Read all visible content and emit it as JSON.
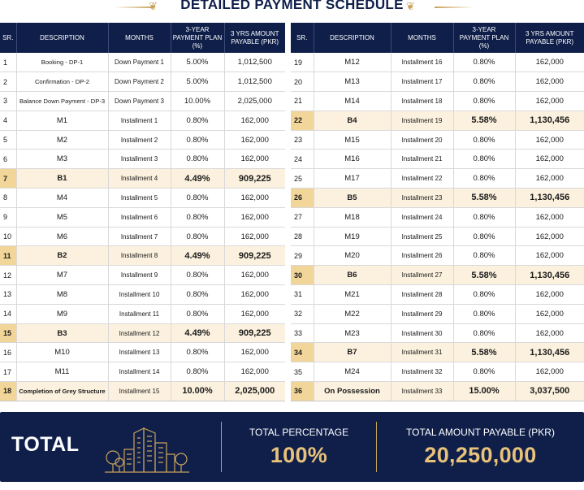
{
  "title": "DETAILED PAYMENT SCHEDULE",
  "headers": {
    "sr": "SR.",
    "description": "DESCRIPTION",
    "months": "MONTHS",
    "plan_line1": "3-YEAR",
    "plan_line2": "PAYMENT PLAN (%)",
    "amount_line1": "3 YRS AMOUNT",
    "amount_line2": "PAYABLE (PKR)"
  },
  "left_rows": [
    {
      "sr": "1",
      "desc": "Booking - DP-1",
      "months": "Down Payment 1",
      "pct": "5.00%",
      "amt": "1,012,500",
      "hl": false,
      "long": true
    },
    {
      "sr": "2",
      "desc": "Confirmation - DP-2",
      "months": "Down Payment 2",
      "pct": "5.00%",
      "amt": "1,012,500",
      "hl": false,
      "long": true
    },
    {
      "sr": "3",
      "desc": "Balance Down Payment - DP-3",
      "months": "Down Payment 3",
      "pct": "10.00%",
      "amt": "2,025,000",
      "hl": false,
      "long": true
    },
    {
      "sr": "4",
      "desc": "M1",
      "months": "Installment 1",
      "pct": "0.80%",
      "amt": "162,000",
      "hl": false
    },
    {
      "sr": "5",
      "desc": "M2",
      "months": "Installment 2",
      "pct": "0.80%",
      "amt": "162,000",
      "hl": false
    },
    {
      "sr": "6",
      "desc": "M3",
      "months": "Installment 3",
      "pct": "0.80%",
      "amt": "162,000",
      "hl": false
    },
    {
      "sr": "7",
      "desc": "B1",
      "months": "Installment 4",
      "pct": "4.49%",
      "amt": "909,225",
      "hl": true
    },
    {
      "sr": "8",
      "desc": "M4",
      "months": "Installment 5",
      "pct": "0.80%",
      "amt": "162,000",
      "hl": false
    },
    {
      "sr": "9",
      "desc": "M5",
      "months": "Installment 6",
      "pct": "0.80%",
      "amt": "162,000",
      "hl": false
    },
    {
      "sr": "10",
      "desc": "M6",
      "months": "Installment 7",
      "pct": "0.80%",
      "amt": "162,000",
      "hl": false
    },
    {
      "sr": "11",
      "desc": "B2",
      "months": "Installment 8",
      "pct": "4.49%",
      "amt": "909,225",
      "hl": true
    },
    {
      "sr": "12",
      "desc": "M7",
      "months": "Installment 9",
      "pct": "0.80%",
      "amt": "162,000",
      "hl": false
    },
    {
      "sr": "13",
      "desc": "M8",
      "months": "Installment 10",
      "pct": "0.80%",
      "amt": "162,000",
      "hl": false
    },
    {
      "sr": "14",
      "desc": "M9",
      "months": "Installment 11",
      "pct": "0.80%",
      "amt": "162,000",
      "hl": false
    },
    {
      "sr": "15",
      "desc": "B3",
      "months": "Installment 12",
      "pct": "4.49%",
      "amt": "909,225",
      "hl": true
    },
    {
      "sr": "16",
      "desc": "M10",
      "months": "Installment 13",
      "pct": "0.80%",
      "amt": "162,000",
      "hl": false
    },
    {
      "sr": "17",
      "desc": "M11",
      "months": "Installment 14",
      "pct": "0.80%",
      "amt": "162,000",
      "hl": false
    },
    {
      "sr": "18",
      "desc": "Completion of Grey Structure",
      "months": "Installment 15",
      "pct": "10.00%",
      "amt": "2,025,000",
      "hl": true,
      "long": true
    }
  ],
  "right_rows": [
    {
      "sr": "19",
      "desc": "M12",
      "months": "Installment 16",
      "pct": "0.80%",
      "amt": "162,000",
      "hl": false
    },
    {
      "sr": "20",
      "desc": "M13",
      "months": "Installment 17",
      "pct": "0.80%",
      "amt": "162,000",
      "hl": false
    },
    {
      "sr": "21",
      "desc": "M14",
      "months": "Installment 18",
      "pct": "0.80%",
      "amt": "162,000",
      "hl": false
    },
    {
      "sr": "22",
      "desc": "B4",
      "months": "Installment 19",
      "pct": "5.58%",
      "amt": "1,130,456",
      "hl": true
    },
    {
      "sr": "23",
      "desc": "M15",
      "months": "Installment 20",
      "pct": "0.80%",
      "amt": "162,000",
      "hl": false
    },
    {
      "sr": "24",
      "desc": "M16",
      "months": "Installment 21",
      "pct": "0.80%",
      "amt": "162,000",
      "hl": false
    },
    {
      "sr": "25",
      "desc": "M17",
      "months": "Installment 22",
      "pct": "0.80%",
      "amt": "162,000",
      "hl": false
    },
    {
      "sr": "26",
      "desc": "B5",
      "months": "Installment 23",
      "pct": "5.58%",
      "amt": "1,130,456",
      "hl": true
    },
    {
      "sr": "27",
      "desc": "M18",
      "months": "Installment 24",
      "pct": "0.80%",
      "amt": "162,000",
      "hl": false
    },
    {
      "sr": "28",
      "desc": "M19",
      "months": "Installment 25",
      "pct": "0.80%",
      "amt": "162,000",
      "hl": false
    },
    {
      "sr": "29",
      "desc": "M20",
      "months": "Installment 26",
      "pct": "0.80%",
      "amt": "162,000",
      "hl": false
    },
    {
      "sr": "30",
      "desc": "B6",
      "months": "Installment 27",
      "pct": "5.58%",
      "amt": "1,130,456",
      "hl": true
    },
    {
      "sr": "31",
      "desc": "M21",
      "months": "Installment 28",
      "pct": "0.80%",
      "amt": "162,000",
      "hl": false
    },
    {
      "sr": "32",
      "desc": "M22",
      "months": "Installment 29",
      "pct": "0.80%",
      "amt": "162,000",
      "hl": false
    },
    {
      "sr": "33",
      "desc": "M23",
      "months": "Installment 30",
      "pct": "0.80%",
      "amt": "162,000",
      "hl": false
    },
    {
      "sr": "34",
      "desc": "B7",
      "months": "Installment 31",
      "pct": "5.58%",
      "amt": "1,130,456",
      "hl": true
    },
    {
      "sr": "35",
      "desc": "M24",
      "months": "Installment 32",
      "pct": "0.80%",
      "amt": "162,000",
      "hl": false
    },
    {
      "sr": "36",
      "desc": "On Possession",
      "months": "Installment 33",
      "pct": "15.00%",
      "amt": "3,037,500",
      "hl": true
    }
  ],
  "summary": {
    "total_label": "TOTAL",
    "percentage_label": "TOTAL PERCENTAGE",
    "percentage_value": "100%",
    "amount_label": "TOTAL AMOUNT PAYABLE (PKR)",
    "amount_value": "20,250,000",
    "illustration_icon": "city-buildings-icon"
  },
  "colors": {
    "navy": "#0f1f4a",
    "gold": "#c9a25a",
    "gold_text": "#e8c17a",
    "highlight_row": "#fbf1de",
    "highlight_sr": "#f2d699"
  }
}
